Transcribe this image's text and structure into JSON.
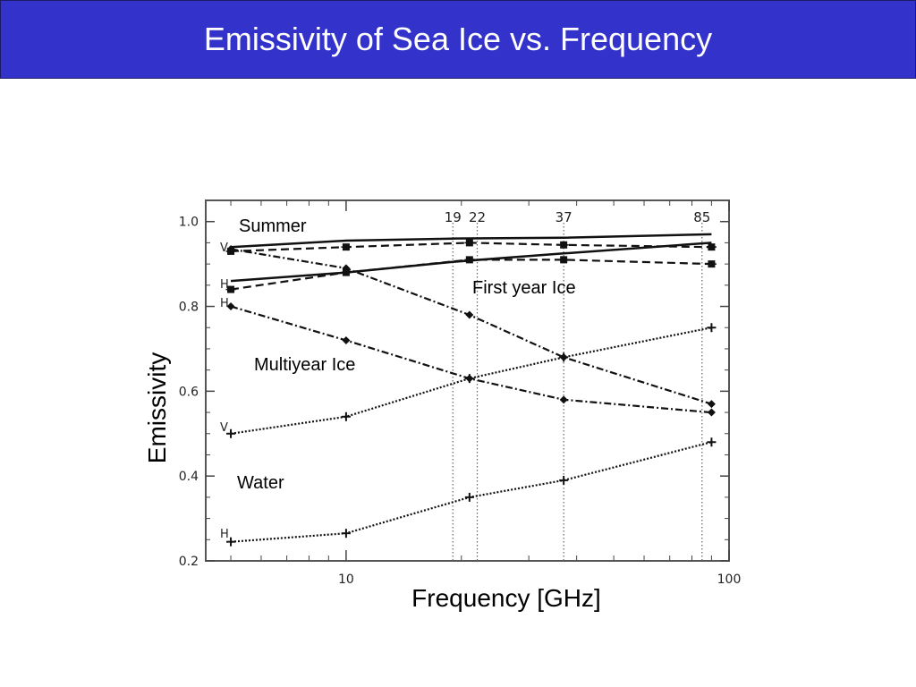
{
  "title": "Emissivity of Sea Ice vs. Frequency",
  "chart_data": {
    "type": "line",
    "xlabel": "Frequency [GHz]",
    "ylabel": "Emissivity",
    "xscale": "log",
    "xlim": [
      4.3,
      100
    ],
    "ylim": [
      0.2,
      1.05
    ],
    "x_ticks": [
      10,
      100
    ],
    "y_ticks": [
      0.2,
      0.4,
      0.6,
      0.8,
      1.0
    ],
    "y_tick_labels": [
      "0.2",
      "0.4",
      "0.6",
      "0.8",
      "1.0"
    ],
    "x_tick_labels": [
      "10",
      "100"
    ],
    "reference_frequencies": [
      {
        "x": 19,
        "label": "19"
      },
      {
        "x": 22,
        "label": "22"
      },
      {
        "x": 37,
        "label": "37"
      },
      {
        "x": 85,
        "label": "85"
      }
    ],
    "annotations": [
      "Summer",
      "First year Ice",
      "Multiyear Ice",
      "Water"
    ],
    "side_labels": [
      "V",
      "H",
      "H",
      "V",
      "H"
    ],
    "series": [
      {
        "style": "solid",
        "marker": "none",
        "x": [
          5,
          10,
          19,
          37,
          90
        ],
        "values": [
          0.94,
          0.955,
          0.96,
          0.962,
          0.97
        ]
      },
      {
        "style": "solid",
        "marker": "none",
        "x": [
          5,
          10,
          19,
          37,
          90
        ],
        "values": [
          0.86,
          0.88,
          0.905,
          0.925,
          0.95
        ]
      },
      {
        "style": "dashed",
        "marker": "star",
        "x": [
          5,
          10,
          21,
          37,
          90
        ],
        "values": [
          0.93,
          0.94,
          0.95,
          0.945,
          0.94
        ]
      },
      {
        "style": "dashed",
        "marker": "star",
        "x": [
          5,
          10,
          21,
          37,
          90
        ],
        "values": [
          0.84,
          0.88,
          0.91,
          0.91,
          0.9
        ]
      },
      {
        "style": "dash-dot",
        "marker": "diamond",
        "x": [
          5,
          10,
          21,
          37,
          90
        ],
        "values": [
          0.935,
          0.89,
          0.78,
          0.68,
          0.57
        ]
      },
      {
        "style": "dash-dot",
        "marker": "diamond",
        "x": [
          5,
          10,
          21,
          37,
          90
        ],
        "values": [
          0.8,
          0.72,
          0.63,
          0.58,
          0.55
        ]
      },
      {
        "style": "dotted",
        "marker": "plus",
        "x": [
          5,
          10,
          21,
          37,
          90
        ],
        "values": [
          0.5,
          0.54,
          0.63,
          0.68,
          0.75
        ]
      },
      {
        "style": "dotted",
        "marker": "plus",
        "x": [
          5,
          10,
          21,
          37,
          90
        ],
        "values": [
          0.245,
          0.265,
          0.35,
          0.39,
          0.48
        ]
      }
    ]
  }
}
